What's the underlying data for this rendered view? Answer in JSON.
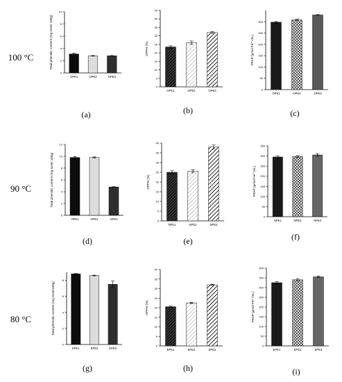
{
  "row_labels": [
    "100 °C",
    "90 °C",
    "80 °C"
  ],
  "chart_data": [
    {
      "id": "a",
      "panel_label": "(a)",
      "type": "bar",
      "style": "solid",
      "categories": [
        "OPE1",
        "OPE2",
        "OPE3"
      ],
      "values": [
        3.1,
        2.8,
        2.8
      ],
      "errors": [
        0.15,
        0.05,
        0.05
      ],
      "ylim": [
        0,
        10
      ],
      "yticks": [
        0,
        2,
        4,
        6,
        8,
        10
      ],
      "ylabel": "Total phenolic content (mg GAE/ 100g)"
    },
    {
      "id": "b",
      "panel_label": "(b)",
      "type": "bar",
      "style": "hatch",
      "categories": [
        "OPE1",
        "OPE2",
        "OPE3"
      ],
      "values": [
        23.5,
        26,
        32
      ],
      "errors": [
        0.7,
        1.0,
        0.5
      ],
      "ylim": [
        0,
        45
      ],
      "yticks": [
        0,
        5,
        10,
        15,
        20,
        25,
        30,
        35,
        40,
        45
      ],
      "ylabel": "DPPH (%)"
    },
    {
      "id": "c",
      "panel_label": "(c)",
      "type": "bar",
      "style": "mesh",
      "categories": [
        "OPE1",
        "OPE2",
        "OPE3"
      ],
      "values": [
        298,
        308,
        330
      ],
      "errors": [
        3,
        3,
        2
      ],
      "ylim": [
        0,
        350
      ],
      "yticks": [
        0,
        50,
        100,
        150,
        200,
        250,
        300
      ],
      "ylabel": "FRAP (µmol Fe²⁺/mL)"
    },
    {
      "id": "d",
      "panel_label": "(d)",
      "type": "bar",
      "style": "solid",
      "categories": [
        "HPE1",
        "HPE2",
        "HPE3"
      ],
      "values": [
        9.8,
        9.8,
        4.8
      ],
      "errors": [
        0.15,
        0.1,
        0.05
      ],
      "ylim": [
        0,
        12
      ],
      "yticks": [
        0,
        2,
        4,
        6,
        8,
        10,
        12
      ],
      "ylabel": "Total phenolic content (mg GAE/ 100g)"
    },
    {
      "id": "e",
      "panel_label": "(e)",
      "type": "bar",
      "style": "hatch",
      "categories": [
        "NPE1",
        "NPE2",
        "NPE3"
      ],
      "values": [
        25,
        25.5,
        38
      ],
      "errors": [
        0.8,
        0.8,
        1.0
      ],
      "ylim": [
        0,
        40
      ],
      "yticks": [
        0,
        5,
        10,
        15,
        20,
        25,
        30,
        35,
        40
      ],
      "ylabel": "DPPH (%)"
    },
    {
      "id": "f",
      "panel_label": "(f)",
      "type": "bar",
      "style": "mesh",
      "categories": [
        "NPE1",
        "NPE2",
        "NPE3"
      ],
      "values": [
        295,
        298,
        305
      ],
      "errors": [
        5,
        4,
        6
      ],
      "ylim": [
        0,
        350
      ],
      "yticks": [
        0,
        50,
        100,
        150,
        200,
        250,
        300,
        350
      ],
      "ylabel": "FRAP (µmol Fe²⁺/mL)"
    },
    {
      "id": "g",
      "panel_label": "(g)",
      "type": "bar",
      "style": "solid",
      "categories": [
        "EPE1",
        "EPE2",
        "EPE3"
      ],
      "values": [
        8.8,
        8.6,
        7.5
      ],
      "errors": [
        0.05,
        0.05,
        0.4
      ],
      "ylim": [
        0,
        9
      ],
      "yticks": [
        0,
        2,
        4,
        6,
        8
      ],
      "ylabel": "Total phenolic content (mg GAE/100g)"
    },
    {
      "id": "h",
      "panel_label": "(h)",
      "type": "bar",
      "style": "hatch",
      "categories": [
        "EPE1",
        "EPE2",
        "EPE3"
      ],
      "values": [
        20.5,
        22.5,
        32
      ],
      "errors": [
        0.3,
        0.3,
        0.3
      ],
      "ylim": [
        0,
        40
      ],
      "yticks": [
        0,
        5,
        10,
        15,
        20,
        25,
        30,
        35,
        40
      ],
      "ylabel": "DPPH (%)"
    },
    {
      "id": "i",
      "panel_label": "(i)",
      "type": "bar",
      "style": "mesh",
      "categories": [
        "EPE1",
        "EPE2",
        "EPE3"
      ],
      "values": [
        325,
        340,
        355
      ],
      "errors": [
        5,
        6,
        4
      ],
      "ylim": [
        0,
        400
      ],
      "yticks": [
        0,
        50,
        100,
        150,
        200,
        250,
        300,
        350,
        400
      ],
      "ylabel": "FRAP (µmol Fe²⁺/mL)"
    }
  ]
}
